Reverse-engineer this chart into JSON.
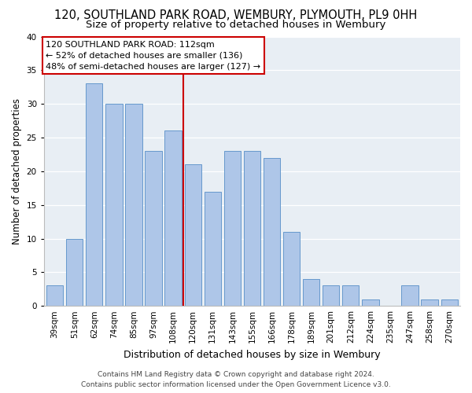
{
  "title": "120, SOUTHLAND PARK ROAD, WEMBURY, PLYMOUTH, PL9 0HH",
  "subtitle": "Size of property relative to detached houses in Wembury",
  "xlabel": "Distribution of detached houses by size in Wembury",
  "ylabel": "Number of detached properties",
  "bar_labels": [
    "39sqm",
    "51sqm",
    "62sqm",
    "74sqm",
    "85sqm",
    "97sqm",
    "108sqm",
    "120sqm",
    "131sqm",
    "143sqm",
    "155sqm",
    "166sqm",
    "178sqm",
    "189sqm",
    "201sqm",
    "212sqm",
    "224sqm",
    "235sqm",
    "247sqm",
    "258sqm",
    "270sqm"
  ],
  "bar_values": [
    3,
    10,
    33,
    30,
    30,
    23,
    26,
    21,
    17,
    23,
    23,
    22,
    11,
    4,
    3,
    3,
    1,
    0,
    3,
    1,
    1
  ],
  "bar_color": "#aec6e8",
  "bar_edge_color": "#6699cc",
  "vline_color": "#cc0000",
  "vline_x": 6.5,
  "ylim": [
    0,
    40
  ],
  "yticks": [
    0,
    5,
    10,
    15,
    20,
    25,
    30,
    35,
    40
  ],
  "ax_bg_color": "#e8eef4",
  "grid_color": "#ffffff",
  "annotation_line1": "120 SOUTHLAND PARK ROAD: 112sqm",
  "annotation_line2": "← 52% of detached houses are smaller (136)",
  "annotation_line3": "48% of semi-detached houses are larger (127) →",
  "footer_line1": "Contains HM Land Registry data © Crown copyright and database right 2024.",
  "footer_line2": "Contains public sector information licensed under the Open Government Licence v3.0.",
  "title_fontsize": 10.5,
  "subtitle_fontsize": 9.5,
  "xlabel_fontsize": 9,
  "ylabel_fontsize": 8.5,
  "tick_fontsize": 7.5,
  "annotation_fontsize": 8,
  "footer_fontsize": 6.5
}
